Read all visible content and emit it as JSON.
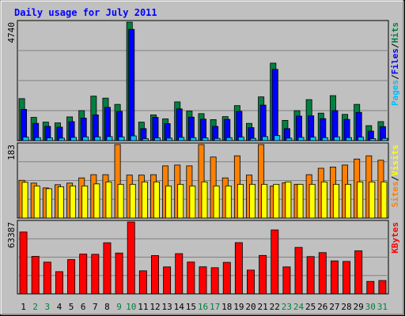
{
  "chart_data": {
    "type": "bar",
    "title": "Daily usage for July 2011",
    "categories": [
      "1",
      "2",
      "3",
      "4",
      "5",
      "6",
      "7",
      "8",
      "9",
      "10",
      "11",
      "12",
      "13",
      "14",
      "15",
      "16",
      "17",
      "18",
      "19",
      "20",
      "21",
      "22",
      "23",
      "24",
      "25",
      "26",
      "27",
      "28",
      "29",
      "30",
      "31"
    ],
    "weekend_days": [
      "2",
      "3",
      "9",
      "10",
      "16",
      "17",
      "23",
      "24",
      "30",
      "31"
    ],
    "colors": {
      "background": "#c0c0c0",
      "title": "#0000ff",
      "weekday_label": "#000000",
      "weekend_label": "#008040",
      "grid": "#808080",
      "pages": "#00c0ff",
      "files": "#0000ff",
      "hits": "#008040",
      "sites": "#ffff00",
      "visits": "#ff8000",
      "kbytes": "#ff0000"
    },
    "panels": [
      {
        "id": "hits-files-pages",
        "max_label": "4740",
        "ymax": 4740,
        "legend": [
          {
            "text": "Pages",
            "color": "#00c0ff"
          },
          {
            "text": "/",
            "color": "#000000"
          },
          {
            "text": "Files",
            "color": "#0000ff"
          },
          {
            "text": "/",
            "color": "#000000"
          },
          {
            "text": "Hits",
            "color": "#008040"
          }
        ],
        "series": [
          {
            "name": "Hits",
            "color": "#008040",
            "values": [
              1680,
              930,
              740,
              710,
              950,
              1200,
              1780,
              1700,
              1450,
              4740,
              740,
              1030,
              870,
              1550,
              1180,
              1080,
              840,
              960,
              1400,
              690,
              1750,
              3100,
              810,
              1200,
              1640,
              1100,
              1800,
              1050,
              1450,
              600,
              760
            ]
          },
          {
            "name": "Files",
            "color": "#0000ff",
            "values": [
              1250,
              690,
              570,
              540,
              760,
              900,
              1030,
              1330,
              1170,
              4450,
              480,
              930,
              680,
              1270,
              940,
              860,
              570,
              850,
              1170,
              520,
              1420,
              2850,
              480,
              980,
              990,
              880,
              1200,
              850,
              1130,
              380,
              560
            ]
          },
          {
            "name": "Pages",
            "color": "#00c0ff",
            "values": [
              140,
              120,
              110,
              100,
              130,
              150,
              150,
              160,
              150,
              190,
              80,
              110,
              100,
              130,
              120,
              110,
              90,
              120,
              140,
              90,
              160,
              200,
              100,
              130,
              140,
              120,
              150,
              120,
              140,
              80,
              90
            ]
          }
        ]
      },
      {
        "id": "visits-sites",
        "max_label": "183",
        "ymax": 183,
        "legend": [
          {
            "text": "Sites",
            "color": "#ff8000"
          },
          {
            "text": "/",
            "color": "#000000"
          },
          {
            "text": "Visits",
            "color": "#ffff00"
          }
        ],
        "series": [
          {
            "name": "Visits",
            "color": "#ff8000",
            "values": [
              94,
              87,
              75,
              83,
              87,
              100,
              108,
              108,
              183,
              107,
              107,
              108,
              130,
              132,
              130,
              183,
              152,
              100,
              155,
              107,
              183,
              80,
              88,
              84,
              108,
              124,
              127,
              132,
              147,
              155,
              144
            ]
          },
          {
            "name": "Sites",
            "color": "#ffff00",
            "values": [
              89,
              80,
              73,
              78,
              80,
              80,
              85,
              90,
              84,
              84,
              90,
              90,
              80,
              84,
              80,
              90,
              80,
              80,
              84,
              84,
              84,
              84,
              90,
              84,
              84,
              90,
              84,
              84,
              90,
              90,
              90
            ]
          }
        ]
      },
      {
        "id": "kbytes",
        "max_label": "63387",
        "ymax": 63387,
        "legend": [
          {
            "text": "KBytes",
            "color": "#ff0000"
          }
        ],
        "series": [
          {
            "name": "KBytes",
            "color": "#ff0000",
            "values": [
              54560,
              33100,
              28000,
              19600,
              30260,
              35100,
              34900,
              45100,
              36040,
              63387,
              20340,
              33800,
              23800,
              35500,
              28100,
              23900,
              23100,
              27800,
              45200,
              21000,
              33900,
              56400,
              23800,
              41000,
              32900,
              36400,
              29100,
              28600,
              38000,
              11000,
              11800
            ]
          }
        ]
      }
    ]
  }
}
